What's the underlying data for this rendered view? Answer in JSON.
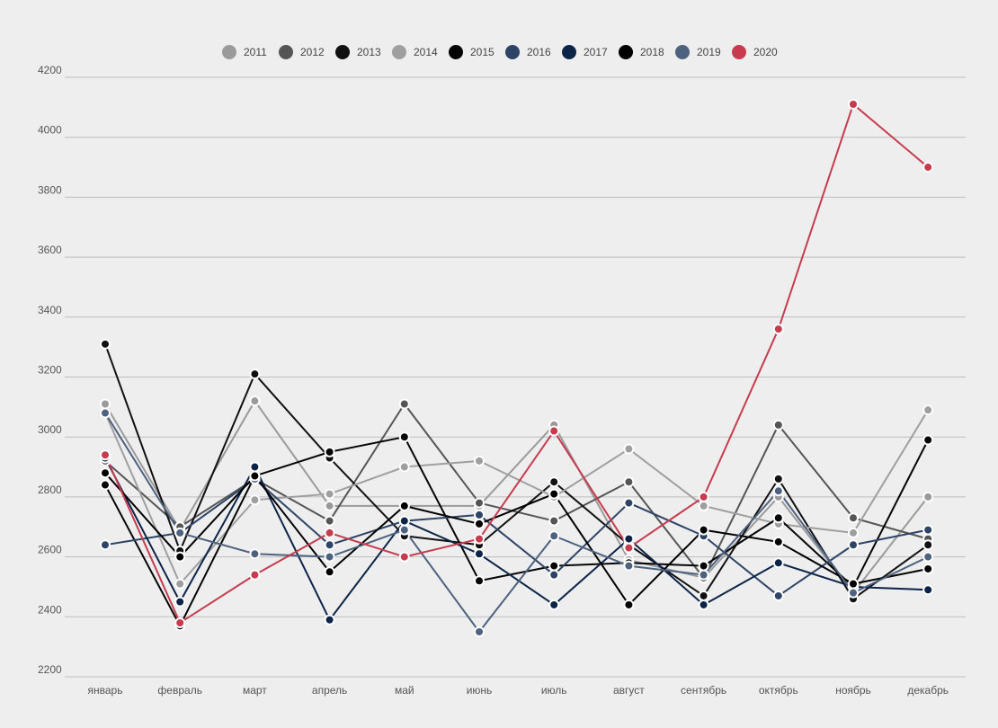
{
  "chart_data": {
    "type": "line",
    "categories": [
      "январь",
      "февраль",
      "март",
      "апрель",
      "май",
      "июнь",
      "июль",
      "август",
      "сентябрь",
      "октябрь",
      "ноябрь",
      "декабрь"
    ],
    "ylim": [
      2200,
      4200
    ],
    "yticks": [
      2200,
      2400,
      2600,
      2800,
      3000,
      3200,
      3400,
      3600,
      3800,
      4000,
      4200
    ],
    "grid": true,
    "legend_position": "top-center",
    "series": [
      {
        "name": "2011",
        "color": "#9a9a9a",
        "values": [
          3110,
          2690,
          3120,
          2770,
          2770,
          2770,
          3040,
          2590,
          2530,
          2800,
          2480,
          2800
        ]
      },
      {
        "name": "2012",
        "color": "#555555",
        "values": [
          2920,
          2700,
          2860,
          2720,
          3110,
          2780,
          2720,
          2850,
          2530,
          3040,
          2730,
          2660
        ]
      },
      {
        "name": "2013",
        "color": "#111111",
        "values": [
          3310,
          2620,
          3210,
          2930,
          2670,
          2640,
          2850,
          2640,
          2470,
          2860,
          2460,
          2640
        ]
      },
      {
        "name": "2014",
        "color": "#9f9f9f",
        "values": [
          3080,
          2510,
          2790,
          2810,
          2900,
          2920,
          2800,
          2960,
          2770,
          2710,
          2680,
          3090
        ]
      },
      {
        "name": "2015",
        "color": "#050505",
        "values": [
          2840,
          2370,
          2870,
          2950,
          3000,
          2520,
          2570,
          2580,
          2570,
          2730,
          2500,
          2990
        ]
      },
      {
        "name": "2016",
        "color": "#2e4466",
        "values": [
          2640,
          2680,
          2860,
          2640,
          2720,
          2740,
          2540,
          2780,
          2670,
          2470,
          2640,
          2690
        ]
      },
      {
        "name": "2017",
        "color": "#0d2449",
        "values": [
          2930,
          2450,
          2900,
          2390,
          2720,
          2610,
          2440,
          2660,
          2440,
          2580,
          2500,
          2490
        ]
      },
      {
        "name": "2018",
        "color": "#000000",
        "values": [
          2880,
          2600,
          2870,
          2550,
          2770,
          2710,
          2810,
          2440,
          2690,
          2650,
          2510,
          2560
        ]
      },
      {
        "name": "2019",
        "color": "#4d627f",
        "values": [
          3080,
          2680,
          2610,
          2600,
          2690,
          2350,
          2670,
          2570,
          2540,
          2820,
          2480,
          2600
        ]
      },
      {
        "name": "2020",
        "color": "#c73b4e",
        "values": [
          2940,
          2380,
          2540,
          2680,
          2600,
          2660,
          3020,
          2630,
          2800,
          3360,
          4110,
          3900
        ]
      }
    ]
  }
}
